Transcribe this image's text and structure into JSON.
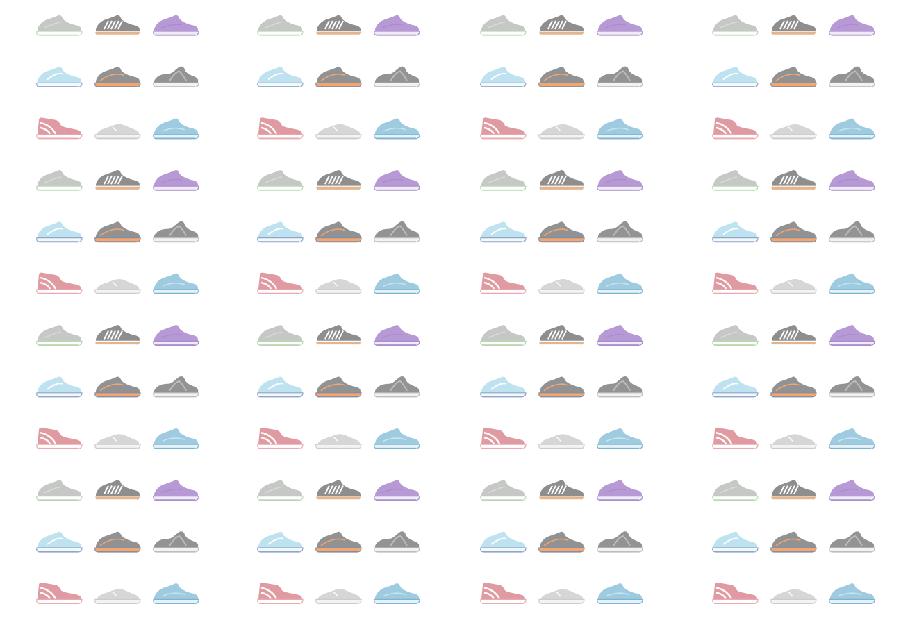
{
  "pattern": {
    "background_color": "#ffffff",
    "tile_rows": [
      [
        "grey-runner-icon",
        "dark-grey-striped-sneaker-icon",
        "purple-runner-icon"
      ],
      [
        "light-blue-runner-icon",
        "grey-orange-sole-runner-icon",
        "dark-grey-sock-sneaker-icon"
      ],
      [
        "pink-high-top-icon",
        "light-grey-plimsoll-icon",
        "blue-knit-runner-icon"
      ]
    ],
    "shoe_colors": {
      "grey-runner-icon": {
        "upper": "#c6c8c6",
        "sole": "#ffffff",
        "trim": "#b9d8b3"
      },
      "dark-grey-striped-sneaker-icon": {
        "upper": "#8e8e8e",
        "sole": "#e3b58f",
        "trim": "#ffffff"
      },
      "purple-runner-icon": {
        "upper": "#b79ad5",
        "sole": "#f1ebf7",
        "trim": "#a98ecb"
      },
      "light-blue-runner-icon": {
        "upper": "#bfe2f0",
        "sole": "#f4f8fb",
        "trim": "#8ea6c8"
      },
      "grey-orange-sole-runner-icon": {
        "upper": "#909294",
        "sole": "#f7a56b",
        "trim": "#7f8fa8"
      },
      "dark-grey-sock-sneaker-icon": {
        "upper": "#939393",
        "sole": "#f2f2f2",
        "trim": "#bdbdbd"
      },
      "pink-high-top-icon": {
        "upper": "#e09ba2",
        "sole": "#ffffff",
        "trim": "#e8aab0"
      },
      "light-grey-plimsoll-icon": {
        "upper": "#d6d6d6",
        "sole": "#f3f3f3",
        "trim": "#cccccc"
      },
      "blue-knit-runner-icon": {
        "upper": "#9fcbe0",
        "sole": "#e5f2f8",
        "trim": "#7fb4cf"
      }
    }
  }
}
